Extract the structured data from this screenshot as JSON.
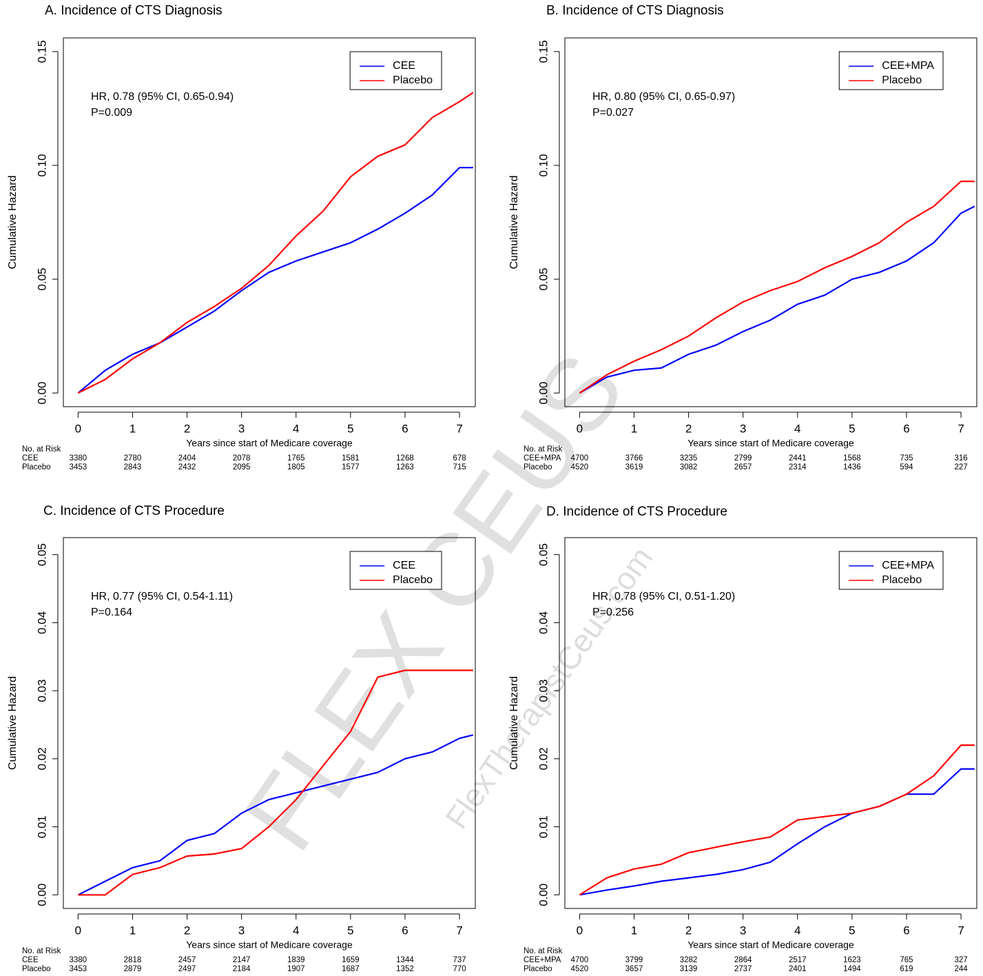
{
  "chart_data": [
    {
      "type": "line",
      "title": "A. Incidence of CTS Diagnosis",
      "annotations": [
        "HR, 0.78 (95% CI, 0.65-0.94)",
        "P=0.009"
      ],
      "xlabel": "Years since start of Medicare coverage",
      "ylabel": "Cumulative Hazard",
      "x": [
        0,
        0.5,
        1,
        1.5,
        2,
        2.5,
        3,
        3.5,
        4,
        4.5,
        5,
        5.5,
        6,
        6.5,
        7,
        7.25
      ],
      "series": [
        {
          "name": "CEE",
          "color": "#0000ff",
          "values": [
            0,
            0.01,
            0.017,
            0.022,
            0.029,
            0.036,
            0.045,
            0.053,
            0.058,
            0.062,
            0.066,
            0.072,
            0.079,
            0.087,
            0.099,
            0.099
          ]
        },
        {
          "name": "Placebo",
          "color": "#ff0000",
          "values": [
            0,
            0.006,
            0.015,
            0.022,
            0.031,
            0.038,
            0.046,
            0.056,
            0.069,
            0.08,
            0.095,
            0.104,
            0.109,
            0.121,
            0.128,
            0.132
          ]
        }
      ],
      "xlim": [
        -0.27,
        7.29
      ],
      "xticks": [
        0,
        1,
        2,
        3,
        4,
        5,
        6,
        7
      ],
      "ylim": [
        -0.006,
        0.156
      ],
      "yticks": [
        {
          "value": 0,
          "label": "0.00"
        },
        0.05,
        {
          "value": 0.1,
          "label": "0.10"
        },
        0.15
      ],
      "legend": "top-right",
      "risk_table": {
        "title": "No. at Risk",
        "rows": [
          {
            "label": "CEE",
            "values": [
              3380,
              2780,
              2404,
              2078,
              1765,
              1581,
              1268,
              678
            ]
          },
          {
            "label": "Placebo",
            "values": [
              3453,
              2843,
              2432,
              2095,
              1805,
              1577,
              1263,
              715
            ]
          }
        ]
      }
    },
    {
      "type": "line",
      "title": "B. Incidence of CTS Diagnosis",
      "annotations": [
        "HR, 0.80 (95% CI, 0.65-0.97)",
        "P=0.027"
      ],
      "xlabel": "Years since start of Medicare coverage",
      "ylabel": "Cumulative Hazard",
      "x": [
        0,
        0.5,
        1,
        1.5,
        2,
        2.5,
        3,
        3.5,
        4,
        4.5,
        5,
        5.5,
        6,
        6.5,
        7,
        7.25
      ],
      "series": [
        {
          "name": "CEE+MPA",
          "color": "#0000ff",
          "values": [
            0,
            0.007,
            0.01,
            0.011,
            0.017,
            0.021,
            0.027,
            0.032,
            0.039,
            0.043,
            0.05,
            0.053,
            0.058,
            0.066,
            0.079,
            0.082
          ]
        },
        {
          "name": "Placebo",
          "color": "#ff0000",
          "values": [
            0,
            0.008,
            0.014,
            0.019,
            0.025,
            0.033,
            0.04,
            0.045,
            0.049,
            0.055,
            0.06,
            0.066,
            0.075,
            0.082,
            0.093,
            0.093
          ]
        }
      ],
      "xlim": [
        -0.27,
        7.29
      ],
      "xticks": [
        0,
        1,
        2,
        3,
        4,
        5,
        6,
        7
      ],
      "ylim": [
        -0.006,
        0.156
      ],
      "yticks": [
        {
          "value": 0,
          "label": "0.00"
        },
        0.05,
        {
          "value": 0.1,
          "label": "0.10"
        },
        0.15
      ],
      "legend": "top-right",
      "risk_table": {
        "title": "No. at Risk",
        "rows": [
          {
            "label": "CEE+MPA",
            "values": [
              4700,
              3766,
              3235,
              2799,
              2441,
              1568,
              735,
              316
            ]
          },
          {
            "label": "Placebo",
            "values": [
              4520,
              3619,
              3082,
              2657,
              2314,
              1436,
              594,
              227
            ]
          }
        ]
      }
    },
    {
      "type": "line",
      "title": "C. Incidence of CTS Procedure",
      "annotations": [
        "HR, 0.77 (95% CI, 0.54-1.11)",
        "P=0.164"
      ],
      "xlabel": "Years since start of Medicare coverage",
      "ylabel": "Cumulative Hazard",
      "x": [
        0,
        0.5,
        1,
        1.5,
        2,
        2.5,
        3,
        3.5,
        4,
        4.5,
        5,
        5.5,
        6,
        6.5,
        7,
        7.25
      ],
      "series": [
        {
          "name": "CEE",
          "color": "#0000ff",
          "values": [
            0,
            0.002,
            0.004,
            0.005,
            0.008,
            0.009,
            0.012,
            0.014,
            0.015,
            0.016,
            0.017,
            0.018,
            0.02,
            0.021,
            0.023,
            0.0235
          ]
        },
        {
          "name": "Placebo",
          "color": "#ff0000",
          "values": [
            0,
            0,
            0.003,
            0.004,
            0.0057,
            0.006,
            0.0068,
            0.01,
            0.014,
            0.019,
            0.024,
            0.032,
            0.033,
            0.033,
            0.033,
            0.033
          ]
        }
      ],
      "xlim": [
        -0.27,
        7.29
      ],
      "xticks": [
        0,
        1,
        2,
        3,
        4,
        5,
        6,
        7
      ],
      "ylim": [
        -0.002,
        0.0525
      ],
      "yticks": [
        {
          "value": 0,
          "label": "0.00"
        },
        0.01,
        0.02,
        0.03,
        0.04,
        0.05
      ],
      "legend": "top-right",
      "risk_table": {
        "title": "No. at Risk",
        "rows": [
          {
            "label": "CEE",
            "values": [
              3380,
              2818,
              2457,
              2147,
              1839,
              1659,
              1344,
              737
            ]
          },
          {
            "label": "Placebo",
            "values": [
              3453,
              2879,
              2497,
              2184,
              1907,
              1687,
              1352,
              770
            ]
          }
        ]
      }
    },
    {
      "type": "line",
      "title": "D. Incidence of CTS Procedure",
      "annotations": [
        "HR, 0.78 (95% CI, 0.51-1.20)",
        "P=0.256"
      ],
      "xlabel": "Years since start of Medicare coverage",
      "ylabel": "Cumulative Hazard",
      "x": [
        0,
        0.5,
        1,
        1.5,
        2,
        2.5,
        3,
        3.5,
        4,
        4.5,
        5,
        5.5,
        6,
        6.5,
        7,
        7.25
      ],
      "series": [
        {
          "name": "CEE+MPA",
          "color": "#0000ff",
          "values": [
            0,
            0.0007,
            0.0013,
            0.002,
            0.0025,
            0.003,
            0.0037,
            0.0048,
            0.0075,
            0.01,
            0.012,
            0.013,
            0.0148,
            0.0148,
            0.0185,
            0.0185
          ]
        },
        {
          "name": "Placebo",
          "color": "#ff0000",
          "values": [
            0,
            0.0025,
            0.0038,
            0.0045,
            0.0062,
            0.007,
            0.0078,
            0.0085,
            0.011,
            0.0115,
            0.012,
            0.013,
            0.0148,
            0.0175,
            0.022,
            0.022
          ]
        }
      ],
      "xlim": [
        -0.27,
        7.29
      ],
      "xticks": [
        0,
        1,
        2,
        3,
        4,
        5,
        6,
        7
      ],
      "ylim": [
        -0.002,
        0.0525
      ],
      "yticks": [
        {
          "value": 0,
          "label": "0.00"
        },
        0.01,
        0.02,
        0.03,
        0.04,
        0.05
      ],
      "legend": "top-right",
      "risk_table": {
        "title": "No. at Risk",
        "rows": [
          {
            "label": "CEE+MPA",
            "values": [
              4700,
              3799,
              3282,
              2864,
              2517,
              1623,
              765,
              327
            ]
          },
          {
            "label": "Placebo",
            "values": [
              4520,
              3657,
              3139,
              2737,
              2401,
              1494,
              619,
              244
            ]
          }
        ]
      }
    }
  ],
  "watermark": {
    "text": "FLEX CEUS",
    "url": "FlexTherapistCeus.com"
  }
}
